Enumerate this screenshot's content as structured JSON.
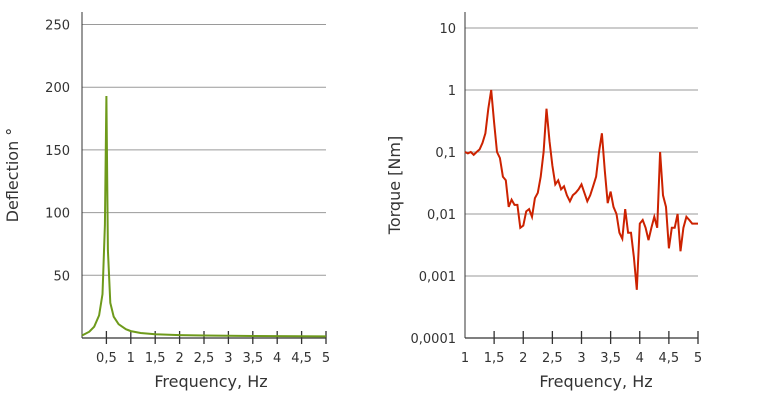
{
  "charts": {
    "left": {
      "ylabel": "Deflection °",
      "xlabel": "Frequency, Hz",
      "ytick_labels": [
        "50",
        "100",
        "150",
        "200",
        "250"
      ],
      "xtick_labels": [
        "0,5",
        "1",
        "1,5",
        "2",
        "2,5",
        "3",
        "3,5",
        "4",
        "4,5",
        "5"
      ]
    },
    "right": {
      "ylabel": "Torque [Nm]",
      "xlabel": "Frequency, Hz",
      "ytick_labels": [
        "0,0001",
        "0,001",
        "0,01",
        "0,1",
        "1",
        "10"
      ],
      "xtick_labels": [
        "1",
        "1,5",
        "2",
        "2,5",
        "3",
        "3,5",
        "4",
        "4,5",
        "5"
      ]
    }
  },
  "chart_data": [
    {
      "type": "line",
      "xlabel": "Frequency, Hz",
      "ylabel": "Deflection °",
      "xlim": [
        0,
        5
      ],
      "ylim": [
        0,
        260
      ],
      "grid": "horizontal",
      "color": "#6e9a1b",
      "x": [
        0,
        0.15,
        0.25,
        0.35,
        0.42,
        0.47,
        0.5,
        0.53,
        0.58,
        0.65,
        0.75,
        0.9,
        1.0,
        1.2,
        1.5,
        2.0,
        2.5,
        3.0,
        3.5,
        4.0,
        4.5,
        5.0
      ],
      "values": [
        2,
        5,
        9,
        18,
        35,
        90,
        193,
        70,
        28,
        17,
        11,
        7,
        5.5,
        4,
        3,
        2.3,
        2,
        1.8,
        1.6,
        1.5,
        1.4,
        1.3
      ]
    },
    {
      "type": "line",
      "scale": "log",
      "xlabel": "Frequency, Hz",
      "ylabel": "Torque [Nm]",
      "xlim": [
        1,
        5
      ],
      "ylim": [
        0.0001,
        10
      ],
      "grid": "horizontal",
      "color": "#cc2200",
      "x": [
        1.0,
        1.05,
        1.1,
        1.15,
        1.2,
        1.25,
        1.3,
        1.35,
        1.4,
        1.45,
        1.5,
        1.55,
        1.6,
        1.65,
        1.7,
        1.75,
        1.8,
        1.85,
        1.9,
        1.95,
        2.0,
        2.05,
        2.1,
        2.15,
        2.2,
        2.25,
        2.3,
        2.35,
        2.4,
        2.45,
        2.5,
        2.55,
        2.6,
        2.65,
        2.7,
        2.75,
        2.8,
        2.85,
        2.9,
        2.95,
        3.0,
        3.05,
        3.1,
        3.15,
        3.2,
        3.25,
        3.3,
        3.35,
        3.4,
        3.45,
        3.5,
        3.55,
        3.6,
        3.65,
        3.7,
        3.75,
        3.8,
        3.85,
        3.9,
        3.95,
        4.0,
        4.05,
        4.1,
        4.15,
        4.2,
        4.25,
        4.3,
        4.35,
        4.4,
        4.45,
        4.5,
        4.55,
        4.6,
        4.65,
        4.7,
        4.75,
        4.8,
        4.85,
        4.9,
        4.95,
        5.0
      ],
      "values": [
        0.1,
        0.095,
        0.1,
        0.09,
        0.1,
        0.11,
        0.14,
        0.2,
        0.5,
        1.0,
        0.3,
        0.1,
        0.08,
        0.04,
        0.035,
        0.013,
        0.017,
        0.014,
        0.014,
        0.006,
        0.0065,
        0.011,
        0.012,
        0.009,
        0.018,
        0.022,
        0.04,
        0.1,
        0.5,
        0.15,
        0.06,
        0.03,
        0.035,
        0.025,
        0.028,
        0.02,
        0.016,
        0.02,
        0.022,
        0.025,
        0.03,
        0.022,
        0.016,
        0.02,
        0.028,
        0.04,
        0.1,
        0.2,
        0.05,
        0.015,
        0.023,
        0.013,
        0.01,
        0.005,
        0.004,
        0.012,
        0.005,
        0.005,
        0.002,
        0.0006,
        0.007,
        0.008,
        0.006,
        0.0038,
        0.006,
        0.009,
        0.006,
        0.1,
        0.02,
        0.013,
        0.0028,
        0.006,
        0.006,
        0.01,
        0.0025,
        0.006,
        0.009,
        0.008,
        0.007,
        0.007,
        0.007
      ]
    }
  ]
}
